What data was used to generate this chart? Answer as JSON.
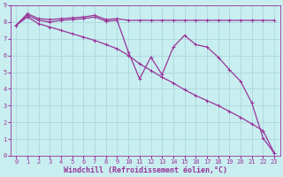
{
  "xlabel": "Windchill (Refroidissement éolien,°C)",
  "background_color": "#c8eef0",
  "line_color": "#993399",
  "xlim": [
    -0.5,
    23.5
  ],
  "ylim": [
    0,
    9
  ],
  "xticks": [
    0,
    1,
    2,
    3,
    4,
    5,
    6,
    7,
    8,
    9,
    10,
    11,
    12,
    13,
    14,
    15,
    16,
    17,
    18,
    19,
    20,
    21,
    22,
    23
  ],
  "yticks": [
    0,
    1,
    2,
    3,
    4,
    5,
    6,
    7,
    8,
    9
  ],
  "line1_x": [
    0,
    1,
    2,
    3,
    4,
    5,
    6,
    7,
    8,
    9,
    10,
    11,
    12,
    13,
    14,
    15,
    16,
    17,
    18,
    19,
    20,
    21,
    22,
    23
  ],
  "line1_y": [
    7.8,
    8.5,
    8.2,
    8.15,
    8.2,
    8.25,
    8.3,
    8.4,
    8.15,
    8.2,
    8.1,
    8.1,
    8.1,
    8.1,
    8.1,
    8.1,
    8.1,
    8.1,
    8.1,
    8.1,
    8.1,
    8.1,
    8.1,
    8.1
  ],
  "line2_x": [
    0,
    1,
    2,
    3,
    4,
    5,
    6,
    7,
    8,
    9,
    10,
    11,
    12,
    13,
    14,
    15,
    16,
    17,
    18,
    19,
    20,
    21,
    22,
    23
  ],
  "line2_y": [
    7.8,
    8.4,
    8.1,
    8.0,
    8.1,
    8.15,
    8.2,
    8.3,
    8.05,
    8.1,
    6.2,
    4.6,
    5.9,
    4.85,
    6.5,
    7.2,
    6.65,
    6.5,
    5.9,
    5.15,
    4.45,
    3.15,
    1.05,
    0.15
  ],
  "line3_x": [
    0,
    1,
    2,
    3,
    4,
    5,
    6,
    7,
    8,
    9,
    10,
    11,
    12,
    13,
    14,
    15,
    16,
    17,
    18,
    19,
    20,
    21,
    22,
    23
  ],
  "line3_y": [
    7.8,
    8.3,
    7.9,
    7.7,
    7.5,
    7.3,
    7.1,
    6.9,
    6.65,
    6.4,
    6.0,
    5.5,
    5.1,
    4.7,
    4.35,
    3.95,
    3.6,
    3.3,
    3.0,
    2.65,
    2.3,
    1.9,
    1.5,
    0.15
  ],
  "grid_color": "#a0ccd4",
  "marker": "+",
  "markersize": 3,
  "linewidth": 0.9,
  "tick_fontsize": 5,
  "xlabel_fontsize": 6,
  "axis_bg": "#c8eef0",
  "spine_color": "#993399"
}
